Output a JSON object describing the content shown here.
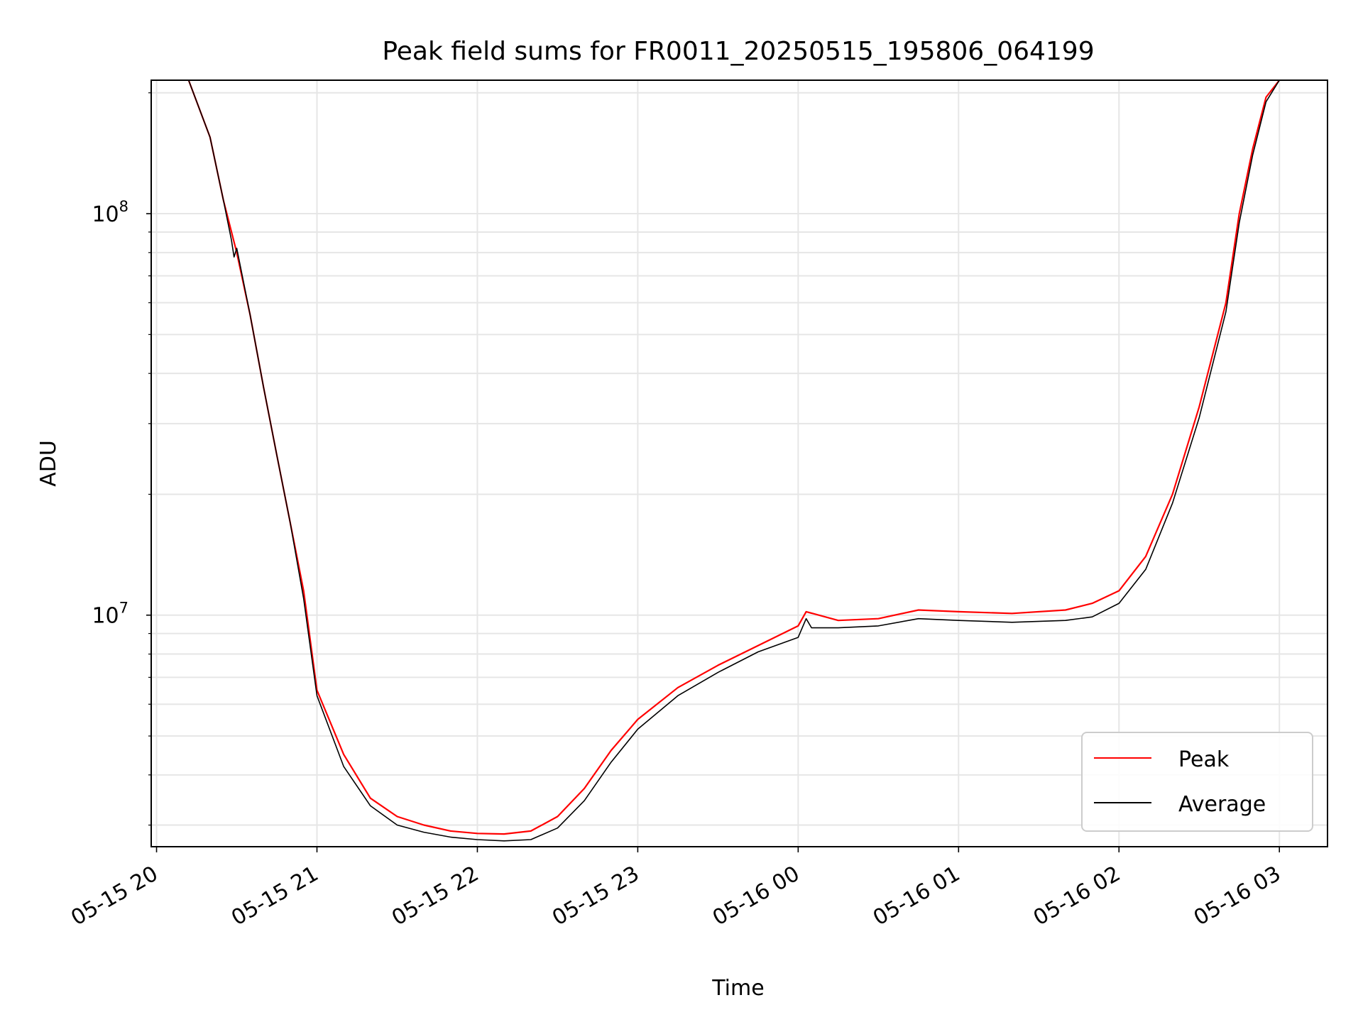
{
  "chart_data": {
    "type": "line",
    "title": "Peak field sums for FR0011_20250515_195806_064199",
    "xlabel": "Time",
    "ylabel": "ADU",
    "x_range": [
      "2025-05-15 19:58",
      "2025-05-16 03:18"
    ],
    "ylim": [
      2650000,
      215000000
    ],
    "yscale": "log",
    "grid": true,
    "legend_position": "lower-right",
    "x_ticks": [
      {
        "t": "2025-05-15 20:00",
        "label": "05-15 20"
      },
      {
        "t": "2025-05-15 21:00",
        "label": "05-15 21"
      },
      {
        "t": "2025-05-15 22:00",
        "label": "05-15 22"
      },
      {
        "t": "2025-05-15 23:00",
        "label": "05-15 23"
      },
      {
        "t": "2025-05-16 00:00",
        "label": "05-16 00"
      },
      {
        "t": "2025-05-16 01:00",
        "label": "05-16 01"
      },
      {
        "t": "2025-05-16 02:00",
        "label": "05-16 02"
      },
      {
        "t": "2025-05-16 03:00",
        "label": "05-16 03"
      }
    ],
    "y_ticks": [
      {
        "value": 10000000,
        "base": "10",
        "exp": "7"
      },
      {
        "value": 100000000,
        "base": "10",
        "exp": "8"
      }
    ],
    "series": [
      {
        "name": "Peak",
        "color": "#ff0000",
        "x": [
          "2025-05-15 20:12",
          "2025-05-15 20:20",
          "2025-05-15 20:25",
          "2025-05-15 20:30",
          "2025-05-15 20:35",
          "2025-05-15 20:40",
          "2025-05-15 20:45",
          "2025-05-15 20:50",
          "2025-05-15 20:55",
          "2025-05-15 21:00",
          "2025-05-15 21:10",
          "2025-05-15 21:20",
          "2025-05-15 21:30",
          "2025-05-15 21:40",
          "2025-05-15 21:50",
          "2025-05-15 22:00",
          "2025-05-15 22:10",
          "2025-05-15 22:20",
          "2025-05-15 22:30",
          "2025-05-15 22:40",
          "2025-05-15 22:50",
          "2025-05-15 23:00",
          "2025-05-15 23:15",
          "2025-05-15 23:30",
          "2025-05-15 23:45",
          "2025-05-16 00:00",
          "2025-05-16 00:03",
          "2025-05-16 00:15",
          "2025-05-16 00:30",
          "2025-05-16 00:45",
          "2025-05-16 01:00",
          "2025-05-16 01:20",
          "2025-05-16 01:40",
          "2025-05-16 01:50",
          "2025-05-16 02:00",
          "2025-05-16 02:10",
          "2025-05-16 02:20",
          "2025-05-16 02:30",
          "2025-05-16 02:40",
          "2025-05-16 02:45",
          "2025-05-16 02:50",
          "2025-05-16 02:55",
          "2025-05-16 03:00"
        ],
        "y": [
          215000000,
          155000000,
          108000000,
          80000000,
          56000000,
          37000000,
          25000000,
          17000000,
          11500000,
          6500000,
          4500000,
          3500000,
          3150000,
          3000000,
          2900000,
          2860000,
          2850000,
          2900000,
          3150000,
          3700000,
          4600000,
          5500000,
          6600000,
          7500000,
          8400000,
          9400000,
          10200000,
          9700000,
          9800000,
          10300000,
          10200000,
          10100000,
          10300000,
          10700000,
          11500000,
          14000000,
          20000000,
          33000000,
          60000000,
          100000000,
          145000000,
          195000000,
          215000000
        ]
      },
      {
        "name": "Average",
        "color": "#000000",
        "x": [
          "2025-05-15 20:12",
          "2025-05-15 20:20",
          "2025-05-15 20:25",
          "2025-05-15 20:28",
          "2025-05-15 20:29",
          "2025-05-15 20:30",
          "2025-05-15 20:35",
          "2025-05-15 20:40",
          "2025-05-15 20:45",
          "2025-05-15 20:50",
          "2025-05-15 20:55",
          "2025-05-15 21:00",
          "2025-05-15 21:10",
          "2025-05-15 21:20",
          "2025-05-15 21:30",
          "2025-05-15 21:40",
          "2025-05-15 21:50",
          "2025-05-15 22:00",
          "2025-05-15 22:10",
          "2025-05-15 22:20",
          "2025-05-15 22:30",
          "2025-05-15 22:40",
          "2025-05-15 22:50",
          "2025-05-15 23:00",
          "2025-05-15 23:15",
          "2025-05-15 23:30",
          "2025-05-15 23:45",
          "2025-05-16 00:00",
          "2025-05-16 00:03",
          "2025-05-16 00:05",
          "2025-05-16 00:15",
          "2025-05-16 00:30",
          "2025-05-16 00:45",
          "2025-05-16 01:00",
          "2025-05-16 01:20",
          "2025-05-16 01:40",
          "2025-05-16 01:50",
          "2025-05-16 02:00",
          "2025-05-16 02:10",
          "2025-05-16 02:20",
          "2025-05-16 02:30",
          "2025-05-16 02:40",
          "2025-05-16 02:45",
          "2025-05-16 02:50",
          "2025-05-16 02:55",
          "2025-05-16 03:00"
        ],
        "y": [
          215000000,
          155000000,
          108000000,
          86000000,
          78000000,
          82000000,
          56000000,
          37000000,
          25000000,
          17000000,
          11000000,
          6300000,
          4200000,
          3350000,
          3000000,
          2880000,
          2800000,
          2760000,
          2740000,
          2760000,
          2950000,
          3450000,
          4300000,
          5200000,
          6300000,
          7200000,
          8100000,
          8800000,
          9800000,
          9300000,
          9300000,
          9400000,
          9800000,
          9700000,
          9600000,
          9700000,
          9900000,
          10700000,
          13000000,
          19000000,
          31000000,
          57000000,
          95000000,
          140000000,
          190000000,
          215000000
        ]
      }
    ]
  }
}
